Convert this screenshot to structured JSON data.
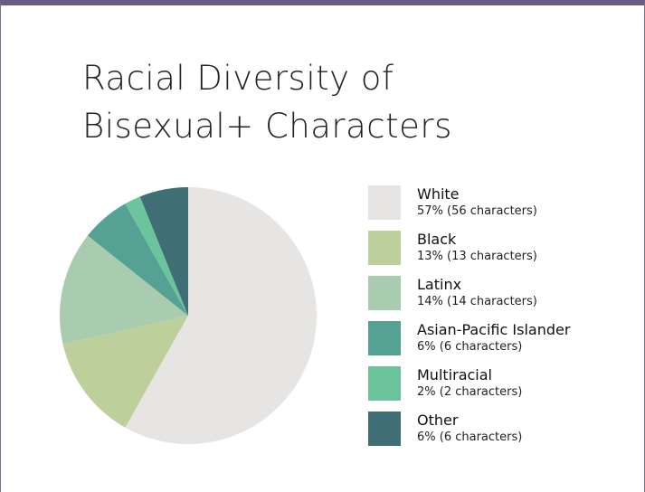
{
  "chart_data": {
    "type": "pie",
    "title": "Racial Diversity of Bisexual+ Characters",
    "categories": [
      "White",
      "Black",
      "Latinx",
      "Asian-Pacific Islander",
      "Multiracial",
      "Other"
    ],
    "values": [
      57,
      13,
      14,
      6,
      2,
      6
    ],
    "value_labels": [
      "57% (56 characters)",
      "13% (13 characters)",
      "14% (14 characters)",
      "6% (6 characters)",
      "2% (2 characters)",
      "6% (6 characters)"
    ],
    "colors": [
      "#e6e5e3",
      "#bdd09c",
      "#a9cbb0",
      "#55a193",
      "#6bc49c",
      "#3f6e75"
    ],
    "legend": "right"
  }
}
